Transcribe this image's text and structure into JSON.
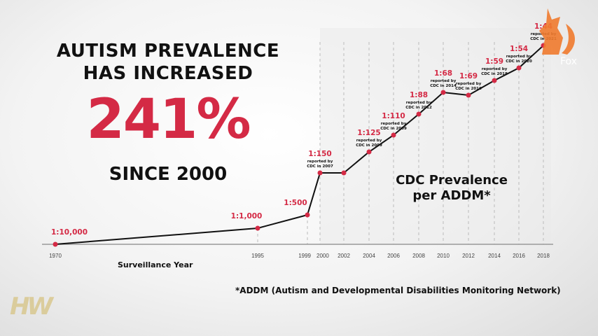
{
  "headline": {
    "line1": "AUTISM PREVALENCE",
    "line2": "HAS INCREASED",
    "percent": "241%",
    "line3": "SINCE 2000"
  },
  "annotation": {
    "line1": "CDC Prevalence",
    "line2": "per ADDM*"
  },
  "footnote": "*ADDM (Autism and Developmental Disabilities Monitoring Network)",
  "logos": {
    "bottom_left": "HW",
    "fox_watermark": "Fox"
  },
  "colors": {
    "accent": "#d42a45",
    "line": "#111111",
    "fox": "#f07a2e",
    "hw_gold": "#d8c68a"
  },
  "chart_data": {
    "type": "line",
    "xlabel": "Surveillance Year",
    "ylabel": "",
    "x_ticks": [
      "1970",
      "1995",
      "1999",
      "2000",
      "2002",
      "2004",
      "2006",
      "2008",
      "2010",
      "2012",
      "2014",
      "2016",
      "2018"
    ],
    "points": [
      {
        "year": "1970",
        "label": "1:10,000",
        "per": 10000,
        "note": ""
      },
      {
        "year": "1995",
        "label": "1:1,000",
        "per": 1000,
        "note": ""
      },
      {
        "year": "1999",
        "label": "1:500",
        "per": 500,
        "note": ""
      },
      {
        "year": "2000",
        "label": "1:150",
        "per": 150,
        "note": "reported by|CDC in 2007"
      },
      {
        "year": "2002",
        "label": "",
        "per": 150,
        "note": ""
      },
      {
        "year": "2004",
        "label": "1:125",
        "per": 125,
        "note": "reported by|CDC in 2009"
      },
      {
        "year": "2006",
        "label": "1:110",
        "per": 110,
        "note": "reported by|CDC in 2009"
      },
      {
        "year": "2008",
        "label": "1:88",
        "per": 88,
        "note": "reported by|CDC in 2012"
      },
      {
        "year": "2010",
        "label": "1:68",
        "per": 68,
        "note": "reported by|CDC in 2014"
      },
      {
        "year": "2012",
        "label": "1:69",
        "per": 69,
        "note": "reported by|CDC in 2016"
      },
      {
        "year": "2014",
        "label": "1:59",
        "per": 59,
        "note": "reported by|CDC in 2018"
      },
      {
        "year": "2016",
        "label": "1:54",
        "per": 54,
        "note": "reported by|CDC in 2020"
      },
      {
        "year": "2018",
        "label": "1:44",
        "per": 44,
        "note": "reported by|CDC in 2021"
      }
    ],
    "grid": "vertical dashed",
    "legend": "none"
  }
}
